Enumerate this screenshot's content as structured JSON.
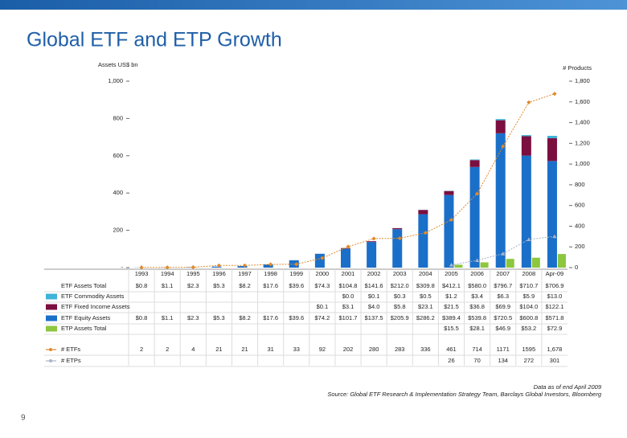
{
  "chart_data": {
    "type": "bar",
    "title": "Global ETF and ETP Growth",
    "y_label": "Assets US$ bn",
    "y2_label": "# Products",
    "note": "Data as of end April 2009",
    "source": "Source: Global ETF Research & Implementation Strategy Team, Barclays Global Investors, Bloomberg",
    "page_number": "9",
    "categories": [
      "1993",
      "1994",
      "1995",
      "1996",
      "1997",
      "1998",
      "1999",
      "2000",
      "2001",
      "2002",
      "2003",
      "2004",
      "2005",
      "2006",
      "2007",
      "2008",
      "Apr-09"
    ],
    "ylim": [
      0,
      1000
    ],
    "yticks": [
      {
        "value": 0,
        "label": "-"
      },
      200,
      400,
      600,
      800,
      {
        "value": 1000,
        "label": "1,000"
      }
    ],
    "y2lim": [
      0,
      1800
    ],
    "y2ticks": [
      0,
      200,
      400,
      600,
      800,
      {
        "value": 1000,
        "label": "1,000"
      },
      {
        "value": 1200,
        "label": "1,200"
      },
      {
        "value": 1400,
        "label": "1,400"
      },
      {
        "value": 1600,
        "label": "1,600"
      },
      {
        "value": 1800,
        "label": "1,800"
      }
    ],
    "series": [
      {
        "name": "ETF Assets Total",
        "kind": "total",
        "values": [
          0.8,
          1.1,
          2.3,
          5.3,
          8.2,
          17.6,
          39.6,
          74.3,
          104.8,
          141.6,
          212.0,
          309.8,
          412.1,
          580.0,
          796.7,
          710.7,
          706.9
        ],
        "value_labels": [
          "$0.8",
          "$1.1",
          "$2.3",
          "$5.3",
          "$8.2",
          "$17.6",
          "$39.6",
          "$74.3",
          "$104.8",
          "$141.6",
          "$212.0",
          "$309.8",
          "$412.1",
          "$580.0",
          "$796.7",
          "$710.7",
          "$706.9"
        ]
      },
      {
        "name": "ETF Commodity Assets",
        "color": "#3fb3d9",
        "values": [
          null,
          null,
          null,
          null,
          null,
          null,
          null,
          null,
          0.0,
          0.1,
          0.3,
          0.5,
          1.2,
          3.4,
          6.3,
          5.9,
          13.0
        ],
        "value_labels": [
          null,
          null,
          null,
          null,
          null,
          null,
          null,
          null,
          "$0.0",
          "$0.1",
          "$0.3",
          "$0.5",
          "$1.2",
          "$3.4",
          "$6.3",
          "$5.9",
          "$13.0"
        ]
      },
      {
        "name": "ETF Fixed Income Assets",
        "color": "#7b0f3f",
        "values": [
          null,
          null,
          null,
          null,
          null,
          null,
          null,
          0.1,
          3.1,
          4.0,
          5.8,
          23.1,
          21.5,
          36.8,
          69.9,
          104.0,
          122.1
        ],
        "value_labels": [
          null,
          null,
          null,
          null,
          null,
          null,
          null,
          "$0.1",
          "$3.1",
          "$4.0",
          "$5.8",
          "$23.1",
          "$21.5",
          "$36.8",
          "$69.9",
          "$104.0",
          "$122.1"
        ]
      },
      {
        "name": "ETF Equity Assets",
        "color": "#1a6fc9",
        "values": [
          0.8,
          1.1,
          2.3,
          5.3,
          8.2,
          17.6,
          39.6,
          74.2,
          101.7,
          137.5,
          205.9,
          286.2,
          389.4,
          539.8,
          720.5,
          600.8,
          571.8
        ],
        "value_labels": [
          "$0.8",
          "$1.1",
          "$2.3",
          "$5.3",
          "$8.2",
          "$17.6",
          "$39.6",
          "$74.2",
          "$101.7",
          "$137.5",
          "$205.9",
          "$286.2",
          "$389.4",
          "$539.8",
          "$720.5",
          "$600.8",
          "$571.8"
        ]
      },
      {
        "name": "ETP Assets Total",
        "color": "#8dc63f",
        "kind": "side",
        "values": [
          null,
          null,
          null,
          null,
          null,
          null,
          null,
          null,
          null,
          null,
          null,
          null,
          15.5,
          28.1,
          46.9,
          53.2,
          72.9
        ],
        "value_labels": [
          null,
          null,
          null,
          null,
          null,
          null,
          null,
          null,
          null,
          null,
          null,
          null,
          "$15.5",
          "$28.1",
          "$46.9",
          "$53.2",
          "$72.9"
        ]
      },
      {
        "name": "# ETFs",
        "color": "#e0892b",
        "kind": "line",
        "axis": "y2",
        "marker": "diamond",
        "values": [
          2,
          2,
          4,
          21,
          21,
          31,
          33,
          92,
          202,
          280,
          283,
          336,
          461,
          714,
          1171,
          1595,
          1678
        ],
        "value_labels": [
          "2",
          "2",
          "4",
          "21",
          "21",
          "31",
          "33",
          "92",
          "202",
          "280",
          "283",
          "336",
          "461",
          "714",
          "1171",
          "1595",
          "1,678"
        ]
      },
      {
        "name": "# ETPs",
        "color": "#a9b4c8",
        "kind": "line",
        "axis": "y2",
        "marker": "triangle",
        "values": [
          null,
          null,
          null,
          null,
          null,
          null,
          null,
          null,
          null,
          null,
          null,
          null,
          26,
          70,
          134,
          272,
          301
        ],
        "value_labels": [
          null,
          null,
          null,
          null,
          null,
          null,
          null,
          null,
          null,
          null,
          null,
          null,
          "26",
          "70",
          "134",
          "272",
          "301"
        ]
      }
    ]
  }
}
